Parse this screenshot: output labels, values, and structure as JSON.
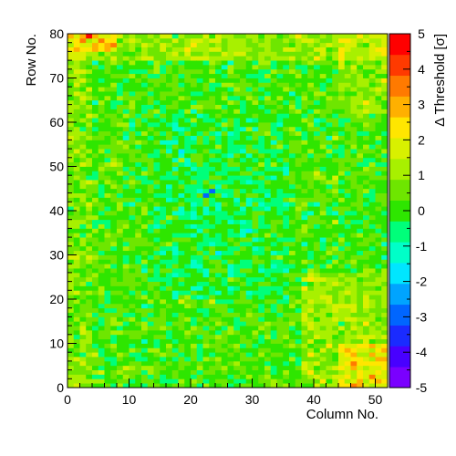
{
  "chart_data": {
    "type": "heatmap",
    "title": "",
    "xlabel": "Column No.",
    "ylabel": "Row No.",
    "zlabel": "Δ Threshold [σ]",
    "xlim": [
      0,
      52
    ],
    "ylim": [
      0,
      80
    ],
    "zlim": [
      -5,
      5
    ],
    "n_columns": 52,
    "n_rows": 80,
    "x_ticks": [
      "0",
      "10",
      "20",
      "30",
      "40",
      "50"
    ],
    "y_ticks": [
      "0",
      "10",
      "20",
      "30",
      "40",
      "50",
      "60",
      "70",
      "80"
    ],
    "z_ticks": [
      "-5",
      "-4",
      "-3",
      "-2",
      "-1",
      "0",
      "1",
      "2",
      "3",
      "4",
      "5"
    ],
    "colorbar_colors": [
      "#7a00ff",
      "#4800ff",
      "#1a2bff",
      "#0066ff",
      "#00a4ff",
      "#00e6ff",
      "#00ffc8",
      "#00ff7a",
      "#2ee600",
      "#6ee600",
      "#a8f000",
      "#d8f000",
      "#ffe600",
      "#ffb000",
      "#ff7a00",
      "#ff3a00",
      "#ff0000"
    ],
    "z_description": "Per-pixel threshold deviation; mostly between -1 and +1, with higher values (+1 to +4) at the top-left corner (rows 75-80) and bottom-right region (columns 40-52, rows 0-25), and a few isolated low values (about -3) near column 23, row 43.",
    "regions": [
      {
        "cols": [
          0,
          52
        ],
        "rows": [
          0,
          80
        ],
        "mean": 0.2
      },
      {
        "cols": [
          0,
          52
        ],
        "rows": [
          74,
          80
        ],
        "mean": 1.4
      },
      {
        "cols": [
          0,
          8
        ],
        "rows": [
          76,
          80
        ],
        "mean": 2.6
      },
      {
        "cols": [
          0,
          4
        ],
        "rows": [
          0,
          80
        ],
        "mean": 0.9
      },
      {
        "cols": [
          38,
          52
        ],
        "rows": [
          0,
          26
        ],
        "mean": 1.3
      },
      {
        "cols": [
          44,
          52
        ],
        "rows": [
          0,
          10
        ],
        "mean": 2.2
      },
      {
        "cols": [
          44,
          52
        ],
        "rows": [
          62,
          80
        ],
        "mean": 1.2
      },
      {
        "cols": [
          14,
          36
        ],
        "rows": [
          20,
          62
        ],
        "mean": -0.45
      }
    ],
    "highlights": [
      {
        "col": 22,
        "row": 43,
        "value": -3.2
      },
      {
        "col": 23,
        "row": 44,
        "value": -3.0
      },
      {
        "col": 3,
        "row": 79,
        "value": 4.5
      },
      {
        "col": 2,
        "row": 78,
        "value": 3.5
      },
      {
        "col": 46,
        "row": 5,
        "value": 3.5
      }
    ]
  }
}
